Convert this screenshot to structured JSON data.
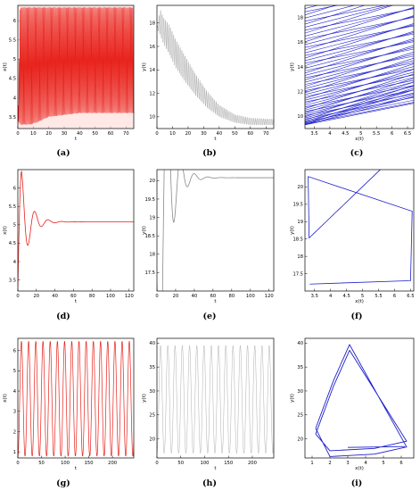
{
  "panels": [
    {
      "id": "a",
      "caption": "(a)",
      "type": "line",
      "xlabel": "t",
      "ylabel": "x(t)",
      "xlim": [
        0,
        75
      ],
      "ylim": [
        3.2,
        6.4
      ],
      "xticks": [
        0,
        10,
        20,
        30,
        40,
        50,
        60,
        70
      ],
      "yticks": [
        3.5,
        4,
        4.5,
        5,
        5.5,
        6
      ],
      "color": "#e8201a",
      "envelope": {
        "x": [
          0,
          1.5,
          3,
          5,
          8,
          12,
          20,
          30,
          40,
          50,
          60,
          70,
          75
        ],
        "upper": [
          3.4,
          6.35,
          6.35,
          6.35,
          6.35,
          6.35,
          6.35,
          6.35,
          6.35,
          6.35,
          6.35,
          6.35,
          6.35
        ],
        "lower": [
          3.4,
          3.3,
          3.3,
          3.3,
          3.3,
          3.35,
          3.5,
          3.55,
          3.6,
          3.6,
          3.6,
          3.6,
          3.6
        ]
      }
    },
    {
      "id": "b",
      "caption": "(b)",
      "type": "line",
      "xlabel": "t",
      "ylabel": "y(t)",
      "xlim": [
        0,
        75
      ],
      "ylim": [
        9.0,
        19.5
      ],
      "xticks": [
        0,
        10,
        20,
        30,
        40,
        50,
        60,
        70
      ],
      "yticks": [
        10,
        12,
        14,
        16,
        18
      ],
      "color": "#8a8a8a",
      "envelope": {
        "x": [
          0,
          2,
          4,
          8,
          12,
          18,
          25,
          32,
          40,
          50,
          60,
          75
        ],
        "upper": [
          17.5,
          19.2,
          18.5,
          17.8,
          16.6,
          15.2,
          13.6,
          12.2,
          11.0,
          10.2,
          9.9,
          9.8
        ],
        "lower": [
          17.5,
          17.0,
          16.3,
          15.3,
          14.2,
          13.0,
          11.8,
          10.8,
          10.0,
          9.5,
          9.3,
          9.3
        ]
      }
    },
    {
      "id": "c",
      "caption": "(c)",
      "type": "phase",
      "xlabel": "x(t)",
      "ylabel": "y(t)",
      "xlim": [
        3.2,
        6.7
      ],
      "ylim": [
        9.0,
        19.0
      ],
      "xticks": [
        3.5,
        4,
        4.5,
        5,
        5.5,
        6,
        6.5
      ],
      "yticks": [
        10,
        12,
        14,
        16,
        18
      ],
      "color": "#1f1fcc"
    },
    {
      "id": "d",
      "caption": "(d)",
      "type": "line",
      "xlabel": "t",
      "ylabel": "x(t)",
      "xlim": [
        0,
        125
      ],
      "ylim": [
        3.2,
        6.5
      ],
      "xticks": [
        0,
        20,
        40,
        60,
        80,
        100,
        120
      ],
      "yticks": [
        3.5,
        4,
        4.5,
        5,
        5.5,
        6
      ],
      "color": "#e8201a",
      "damped": {
        "start": 3.3,
        "final": 5.08,
        "amp": 3.15,
        "decay": 0.11,
        "period": 14.5
      }
    },
    {
      "id": "e",
      "caption": "(e)",
      "type": "line",
      "xlabel": "t",
      "ylabel": "y(t)",
      "xlim": [
        0,
        125
      ],
      "ylim": [
        17.0,
        20.3
      ],
      "xticks": [
        0,
        20,
        40,
        60,
        80,
        100,
        120
      ],
      "yticks": [
        17.5,
        18,
        18.5,
        19,
        19.5,
        20
      ],
      "color": "#8a8a8a",
      "damped": {
        "start": 17.2,
        "final": 20.08,
        "amp": -2.9,
        "decay": 0.11,
        "period": 14.5
      }
    },
    {
      "id": "f",
      "caption": "(f)",
      "type": "phase",
      "xlabel": "x(t)",
      "ylabel": "y(t)",
      "xlim": [
        3.2,
        6.6
      ],
      "ylim": [
        17.0,
        20.5
      ],
      "xticks": [
        3.5,
        4,
        4.5,
        5,
        5.5,
        6,
        6.5
      ],
      "yticks": [
        17.5,
        18,
        18.5,
        19,
        19.5,
        20
      ],
      "color": "#1f1fcc",
      "equilibrium": [
        5.08,
        20.08
      ]
    },
    {
      "id": "g",
      "caption": "(g)",
      "type": "line",
      "xlabel": "t",
      "ylabel": "x(t)",
      "xlim": [
        0,
        245
      ],
      "ylim": [
        0.7,
        6.6
      ],
      "xticks": [
        0,
        50,
        100,
        150,
        200
      ],
      "yticks": [
        1,
        2,
        3,
        4,
        5,
        6
      ],
      "color": "#e8201a",
      "periodic": {
        "min": 0.8,
        "max": 6.45,
        "period": 15.2,
        "cycles": 16
      }
    },
    {
      "id": "h",
      "caption": "(h)",
      "type": "line",
      "xlabel": "t",
      "ylabel": "y(t)",
      "xlim": [
        0,
        245
      ],
      "ylim": [
        16,
        41
      ],
      "xticks": [
        0,
        50,
        100,
        150,
        200
      ],
      "yticks": [
        20,
        25,
        30,
        35,
        40
      ],
      "color": "#8a8a8a",
      "periodic": {
        "min": 17.0,
        "max": 39.5,
        "period": 15.2,
        "cycles": 16
      }
    },
    {
      "id": "i",
      "caption": "(i)",
      "type": "phase",
      "xlabel": "x(t)",
      "ylabel": "y(t)",
      "xlim": [
        0.6,
        6.7
      ],
      "ylim": [
        16,
        41
      ],
      "xticks": [
        1,
        2,
        3,
        4,
        5,
        6
      ],
      "yticks": [
        20,
        25,
        30,
        35,
        40
      ],
      "color": "#1f1fcc"
    }
  ]
}
